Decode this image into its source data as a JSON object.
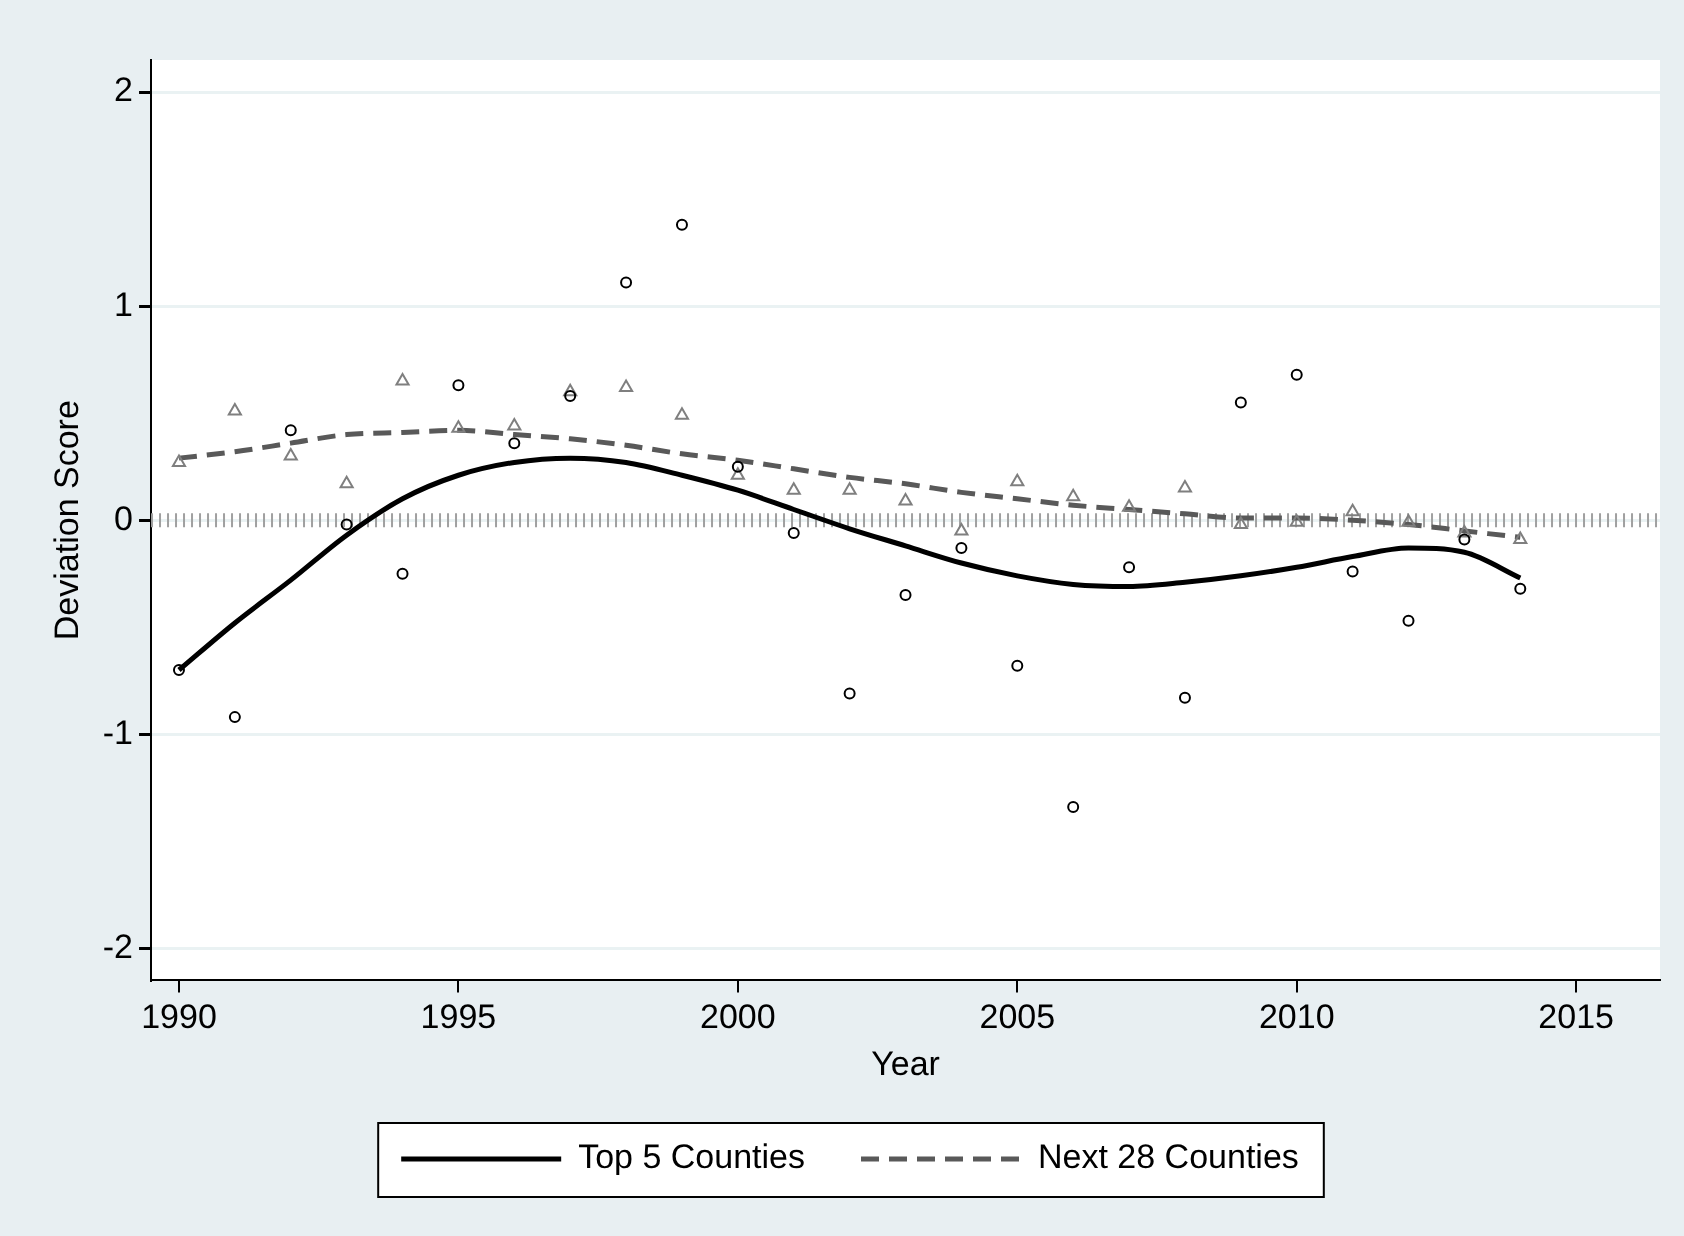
{
  "chart_data": {
    "type": "scatter",
    "xlabel": "Year",
    "ylabel": "Deviation Score",
    "x": [
      1990,
      1991,
      1992,
      1993,
      1994,
      1995,
      1996,
      1997,
      1998,
      1999,
      2000,
      2001,
      2002,
      2003,
      2004,
      2005,
      2006,
      2007,
      2008,
      2009,
      2010,
      2011,
      2012,
      2013,
      2014
    ],
    "series": [
      {
        "marker": "circle",
        "color": "#000000",
        "values": [
          -0.7,
          -0.92,
          0.42,
          -0.02,
          -0.25,
          0.63,
          0.36,
          0.58,
          1.11,
          1.38,
          0.25,
          -0.06,
          -0.81,
          -0.35,
          -0.13,
          -0.68,
          -1.34,
          -0.22,
          -0.83,
          0.55,
          0.68,
          -0.24,
          -0.47,
          -0.09,
          -0.32
        ]
      },
      {
        "marker": "triangle",
        "color": "#7f7f7f",
        "values": [
          0.27,
          0.51,
          0.3,
          0.17,
          0.65,
          0.43,
          0.44,
          0.6,
          0.62,
          0.49,
          0.21,
          0.14,
          0.14,
          0.09,
          -0.05,
          0.18,
          0.11,
          0.06,
          0.15,
          -0.02,
          -0.01,
          0.04,
          -0.01,
          -0.06,
          -0.09
        ]
      },
      {
        "type": "line",
        "name": "Top 5 Counties",
        "line_style": "solid",
        "color": "#000000",
        "values": [
          -0.7,
          -0.48,
          -0.28,
          -0.07,
          0.1,
          0.21,
          0.27,
          0.29,
          0.27,
          0.21,
          0.14,
          0.05,
          -0.04,
          -0.12,
          -0.2,
          -0.26,
          -0.3,
          -0.31,
          -0.29,
          -0.26,
          -0.22,
          -0.17,
          -0.13,
          -0.15,
          -0.27
        ]
      },
      {
        "type": "line",
        "name": "Next 28 Counties",
        "line_style": "dashed",
        "color": "#595959",
        "values": [
          0.29,
          0.32,
          0.36,
          0.4,
          0.41,
          0.42,
          0.4,
          0.38,
          0.35,
          0.31,
          0.28,
          0.24,
          0.2,
          0.17,
          0.13,
          0.1,
          0.07,
          0.05,
          0.03,
          0.01,
          0.01,
          0.0,
          -0.02,
          -0.05,
          -0.08
        ]
      }
    ],
    "xlim": [
      1989.5,
      2016.5
    ],
    "xticks": [
      1990,
      1995,
      2000,
      2005,
      2010,
      2015
    ],
    "ylim": [
      -2.15,
      2.15
    ],
    "yticks": [
      -2,
      -1,
      0,
      1,
      2
    ],
    "ref_lines": [
      {
        "axis": "y",
        "value": 0,
        "color": "#a0a0a0",
        "line_style": "dotted"
      }
    ],
    "grid": "y",
    "legend": "bottom"
  }
}
